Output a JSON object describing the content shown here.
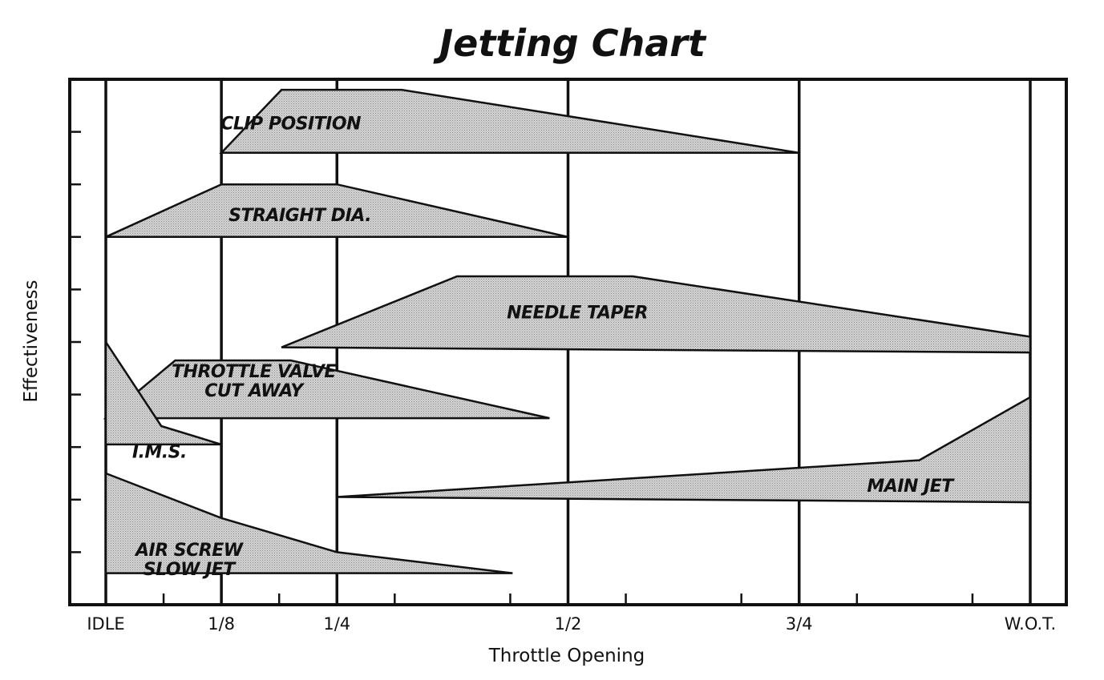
{
  "chart_data": {
    "type": "area",
    "title": "Jetting Chart",
    "xlabel": "Throttle Opening",
    "ylabel": "Effectiveness",
    "x_tick_labels": [
      {
        "x": 0,
        "label": "IDLE"
      },
      {
        "x": 0.125,
        "label": "1/8"
      },
      {
        "x": 0.25,
        "label": "1/4"
      },
      {
        "x": 0.5,
        "label": "1/2"
      },
      {
        "x": 0.75,
        "label": "3/4"
      },
      {
        "x": 1.0,
        "label": "W.O.T."
      }
    ],
    "xlim": [
      -0.04,
      1.03
    ],
    "ylim": [
      0,
      10
    ],
    "grid": "vertical lines at labelled throttle positions",
    "colors": {
      "ink": "#111111",
      "fill": "#c8c8c8",
      "background": "#ffffff"
    },
    "series": [
      {
        "name": "CLIP POSITION",
        "label_lines": [
          "CLIP POSITION"
        ],
        "label_at": [
          0.2,
          9.05
        ],
        "points": [
          [
            0.125,
            8.6
          ],
          [
            0.19,
            9.8
          ],
          [
            0.32,
            9.8
          ],
          [
            0.75,
            8.6
          ]
        ]
      },
      {
        "name": "STRAIGHT DIA.",
        "label_lines": [
          "STRAIGHT DIA."
        ],
        "label_at": [
          0.21,
          7.3
        ],
        "points": [
          [
            0,
            7.0
          ],
          [
            0.125,
            8.0
          ],
          [
            0.25,
            8.0
          ],
          [
            0.5,
            7.0
          ]
        ]
      },
      {
        "name": "NEEDLE TAPER",
        "label_lines": [
          "NEEDLE TAPER"
        ],
        "label_at": [
          0.51,
          5.45
        ],
        "points": [
          [
            0.19,
            4.9
          ],
          [
            0.38,
            6.25
          ],
          [
            0.57,
            6.25
          ],
          [
            1.0,
            5.1
          ],
          [
            1.0,
            4.8
          ]
        ]
      },
      {
        "name": "THROTTLE VALVE CUT AWAY",
        "label_lines": [
          "THROTTLE VALVE",
          "CUT AWAY"
        ],
        "label_at": [
          0.16,
          4.15
        ],
        "points": [
          [
            0,
            3.55
          ],
          [
            0.075,
            4.65
          ],
          [
            0.2,
            4.65
          ],
          [
            0.48,
            3.55
          ]
        ]
      },
      {
        "name": "I.M.S.",
        "label_lines": [
          "I.M.S."
        ],
        "label_at": [
          0.058,
          2.8
        ],
        "points": [
          [
            0,
            5.0
          ],
          [
            0,
            3.05
          ],
          [
            0.125,
            3.05
          ],
          [
            0.06,
            3.4
          ]
        ]
      },
      {
        "name": "MAIN JET",
        "label_lines": [
          "MAIN JET"
        ],
        "label_at": [
          0.87,
          2.15
        ],
        "points": [
          [
            0.25,
            2.05
          ],
          [
            0.88,
            2.75
          ],
          [
            1.0,
            3.95
          ],
          [
            1.0,
            1.95
          ]
        ]
      },
      {
        "name": "AIR SCREW SLOW JET",
        "label_lines": [
          "AIR SCREW",
          "SLOW JET"
        ],
        "label_at": [
          0.09,
          0.75
        ],
        "points": [
          [
            0,
            2.5
          ],
          [
            0.125,
            1.65
          ],
          [
            0.25,
            1.0
          ],
          [
            0.44,
            0.6
          ],
          [
            0,
            0.6
          ]
        ]
      }
    ]
  }
}
